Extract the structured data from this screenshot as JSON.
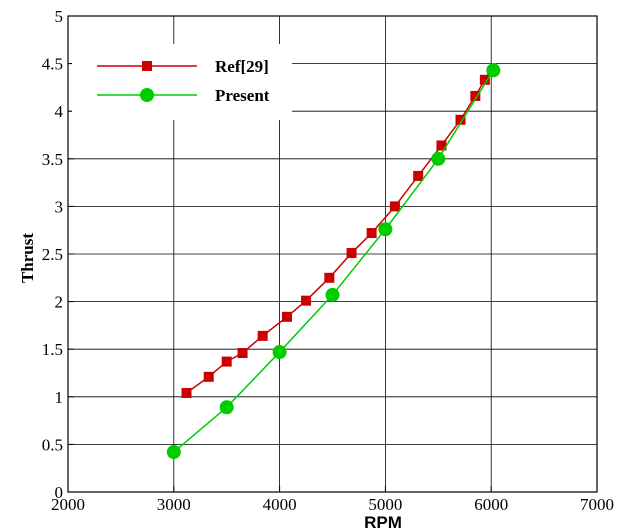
{
  "chart_data": {
    "type": "line",
    "xlabel": "RPM",
    "ylabel": "Thrust",
    "xlim": [
      2000,
      7000
    ],
    "ylim": [
      0,
      5
    ],
    "xticks": [
      2000,
      3000,
      4000,
      5000,
      6000,
      7000
    ],
    "yticks": [
      0,
      0.5,
      1,
      1.5,
      2,
      2.5,
      3,
      3.5,
      4,
      4.5,
      5
    ],
    "xtick_labels": [
      "2000",
      "3000",
      "4000",
      "5000",
      "6000",
      "7000"
    ],
    "ytick_labels": [
      "0",
      "0.5",
      "1",
      "1.5",
      "2",
      "2.5",
      "3",
      "3.5",
      "4",
      "4.5",
      "5"
    ],
    "grid": true,
    "legend_position": "top-left",
    "series": [
      {
        "name": "Ref[29]",
        "color": "#cc0000",
        "marker": "square",
        "x": [
          3120,
          3330,
          3500,
          3650,
          3840,
          4070,
          4250,
          4470,
          4680,
          4870,
          5090,
          5310,
          5530,
          5710,
          5850,
          5940,
          6010
        ],
        "y": [
          1.04,
          1.21,
          1.37,
          1.46,
          1.64,
          1.84,
          2.01,
          2.25,
          2.51,
          2.72,
          3.0,
          3.32,
          3.64,
          3.91,
          4.16,
          4.33,
          4.42
        ]
      },
      {
        "name": "Present",
        "color": "#00cc00",
        "marker": "circle",
        "x": [
          3000,
          3500,
          4000,
          4500,
          5000,
          5500,
          6020
        ],
        "y": [
          0.42,
          0.89,
          1.47,
          2.07,
          2.76,
          3.5,
          4.43
        ]
      }
    ]
  }
}
